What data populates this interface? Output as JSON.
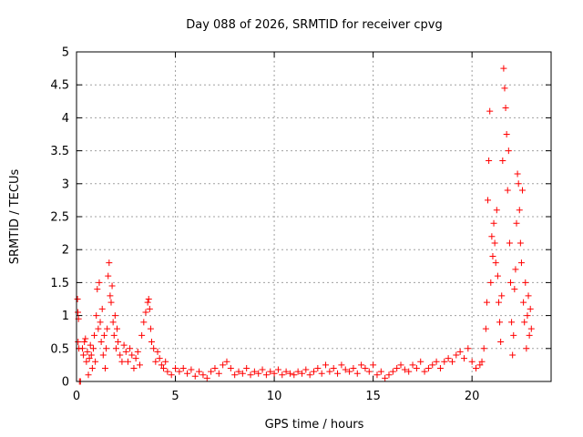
{
  "chart_data": {
    "type": "scatter",
    "title": "Day 088 of 2026, SRMTID for receiver cpvg",
    "xlabel": "GPS time / hours",
    "ylabel": "SRMTID / TECUs",
    "xlim": [
      0,
      24
    ],
    "ylim": [
      0,
      5
    ],
    "xticks": [
      0,
      5,
      10,
      15,
      20
    ],
    "xtick_labels": [
      "0",
      "5",
      "10",
      "15",
      "20"
    ],
    "yticks": [
      0,
      0.5,
      1,
      1.5,
      2,
      2.5,
      3,
      3.5,
      4,
      4.5,
      5
    ],
    "ytick_labels": [
      "0",
      "0.5",
      "1",
      "1.5",
      "2",
      "2.5",
      "3",
      "3.5",
      "4",
      "4.5",
      "5"
    ],
    "grid": true,
    "marker": "+",
    "series": [
      {
        "name": "SRMTID",
        "color": "#ff0000",
        "points": [
          [
            0.05,
            1.25
          ],
          [
            0.07,
            1.05
          ],
          [
            0.08,
            0.6
          ],
          [
            0.1,
            0.95
          ],
          [
            0.12,
            0.5
          ],
          [
            0.15,
            0.0
          ],
          [
            0.2,
            0.0
          ],
          [
            0.3,
            0.5
          ],
          [
            0.35,
            0.4
          ],
          [
            0.4,
            0.6
          ],
          [
            0.45,
            0.65
          ],
          [
            0.5,
            0.3
          ],
          [
            0.55,
            0.45
          ],
          [
            0.6,
            0.1
          ],
          [
            0.65,
            0.35
          ],
          [
            0.7,
            0.55
          ],
          [
            0.75,
            0.4
          ],
          [
            0.8,
            0.2
          ],
          [
            0.85,
            0.5
          ],
          [
            0.9,
            0.7
          ],
          [
            0.95,
            0.3
          ],
          [
            1.0,
            1.0
          ],
          [
            1.05,
            1.4
          ],
          [
            1.1,
            0.8
          ],
          [
            1.15,
            1.5
          ],
          [
            1.2,
            0.9
          ],
          [
            1.25,
            0.6
          ],
          [
            1.3,
            1.1
          ],
          [
            1.35,
            0.4
          ],
          [
            1.4,
            0.7
          ],
          [
            1.45,
            0.2
          ],
          [
            1.5,
            0.5
          ],
          [
            1.55,
            0.8
          ],
          [
            1.6,
            1.6
          ],
          [
            1.65,
            1.8
          ],
          [
            1.7,
            1.3
          ],
          [
            1.75,
            1.2
          ],
          [
            1.8,
            1.45
          ],
          [
            1.85,
            0.9
          ],
          [
            1.9,
            0.7
          ],
          [
            1.95,
            1.0
          ],
          [
            2.0,
            0.5
          ],
          [
            2.05,
            0.8
          ],
          [
            2.1,
            0.6
          ],
          [
            2.2,
            0.4
          ],
          [
            2.3,
            0.3
          ],
          [
            2.4,
            0.55
          ],
          [
            2.5,
            0.45
          ],
          [
            2.6,
            0.3
          ],
          [
            2.7,
            0.5
          ],
          [
            2.8,
            0.4
          ],
          [
            2.9,
            0.2
          ],
          [
            3.0,
            0.35
          ],
          [
            3.1,
            0.45
          ],
          [
            3.2,
            0.25
          ],
          [
            3.3,
            0.7
          ],
          [
            3.4,
            0.9
          ],
          [
            3.5,
            1.05
          ],
          [
            3.6,
            1.2
          ],
          [
            3.65,
            1.25
          ],
          [
            3.7,
            1.1
          ],
          [
            3.75,
            0.8
          ],
          [
            3.8,
            0.6
          ],
          [
            3.9,
            0.5
          ],
          [
            4.0,
            0.3
          ],
          [
            4.1,
            0.45
          ],
          [
            4.2,
            0.35
          ],
          [
            4.3,
            0.25
          ],
          [
            4.4,
            0.2
          ],
          [
            4.5,
            0.3
          ],
          [
            4.6,
            0.15
          ],
          [
            4.8,
            0.1
          ],
          [
            5.0,
            0.2
          ],
          [
            5.2,
            0.15
          ],
          [
            5.4,
            0.2
          ],
          [
            5.6,
            0.12
          ],
          [
            5.8,
            0.18
          ],
          [
            6.0,
            0.08
          ],
          [
            6.2,
            0.15
          ],
          [
            6.4,
            0.1
          ],
          [
            6.6,
            0.05
          ],
          [
            6.8,
            0.15
          ],
          [
            7.0,
            0.2
          ],
          [
            7.2,
            0.12
          ],
          [
            7.4,
            0.25
          ],
          [
            7.6,
            0.3
          ],
          [
            7.8,
            0.2
          ],
          [
            8.0,
            0.1
          ],
          [
            8.2,
            0.15
          ],
          [
            8.4,
            0.12
          ],
          [
            8.6,
            0.2
          ],
          [
            8.8,
            0.1
          ],
          [
            9.0,
            0.15
          ],
          [
            9.2,
            0.12
          ],
          [
            9.4,
            0.18
          ],
          [
            9.6,
            0.1
          ],
          [
            9.8,
            0.15
          ],
          [
            10.0,
            0.12
          ],
          [
            10.2,
            0.18
          ],
          [
            10.4,
            0.1
          ],
          [
            10.6,
            0.15
          ],
          [
            10.8,
            0.12
          ],
          [
            11.0,
            0.1
          ],
          [
            11.2,
            0.15
          ],
          [
            11.4,
            0.12
          ],
          [
            11.6,
            0.18
          ],
          [
            11.8,
            0.1
          ],
          [
            12.0,
            0.15
          ],
          [
            12.2,
            0.2
          ],
          [
            12.4,
            0.12
          ],
          [
            12.6,
            0.25
          ],
          [
            12.8,
            0.15
          ],
          [
            13.0,
            0.2
          ],
          [
            13.2,
            0.12
          ],
          [
            13.4,
            0.25
          ],
          [
            13.6,
            0.18
          ],
          [
            13.8,
            0.15
          ],
          [
            14.0,
            0.2
          ],
          [
            14.2,
            0.12
          ],
          [
            14.4,
            0.25
          ],
          [
            14.6,
            0.2
          ],
          [
            14.8,
            0.15
          ],
          [
            15.0,
            0.25
          ],
          [
            15.2,
            0.1
          ],
          [
            15.4,
            0.15
          ],
          [
            15.6,
            0.05
          ],
          [
            15.8,
            0.1
          ],
          [
            16.0,
            0.15
          ],
          [
            16.2,
            0.2
          ],
          [
            16.4,
            0.25
          ],
          [
            16.6,
            0.18
          ],
          [
            16.8,
            0.15
          ],
          [
            17.0,
            0.25
          ],
          [
            17.2,
            0.2
          ],
          [
            17.4,
            0.3
          ],
          [
            17.6,
            0.15
          ],
          [
            17.8,
            0.2
          ],
          [
            18.0,
            0.25
          ],
          [
            18.2,
            0.3
          ],
          [
            18.4,
            0.2
          ],
          [
            18.6,
            0.3
          ],
          [
            18.8,
            0.35
          ],
          [
            19.0,
            0.3
          ],
          [
            19.2,
            0.4
          ],
          [
            19.4,
            0.45
          ],
          [
            19.6,
            0.35
          ],
          [
            19.8,
            0.5
          ],
          [
            20.0,
            0.3
          ],
          [
            20.2,
            0.2
          ],
          [
            20.4,
            0.25
          ],
          [
            20.5,
            0.3
          ],
          [
            20.6,
            0.5
          ],
          [
            20.7,
            0.8
          ],
          [
            20.75,
            1.2
          ],
          [
            20.8,
            2.75
          ],
          [
            20.85,
            3.35
          ],
          [
            20.9,
            4.1
          ],
          [
            20.95,
            1.5
          ],
          [
            21.0,
            2.2
          ],
          [
            21.05,
            1.9
          ],
          [
            21.1,
            2.4
          ],
          [
            21.15,
            2.1
          ],
          [
            21.2,
            1.8
          ],
          [
            21.25,
            2.6
          ],
          [
            21.3,
            1.6
          ],
          [
            21.35,
            1.2
          ],
          [
            21.4,
            0.9
          ],
          [
            21.45,
            0.6
          ],
          [
            21.5,
            1.3
          ],
          [
            21.55,
            3.35
          ],
          [
            21.6,
            4.75
          ],
          [
            21.65,
            4.45
          ],
          [
            21.7,
            4.15
          ],
          [
            21.75,
            3.75
          ],
          [
            21.8,
            2.9
          ],
          [
            21.85,
            3.5
          ],
          [
            21.9,
            2.1
          ],
          [
            21.95,
            1.5
          ],
          [
            22.0,
            0.9
          ],
          [
            22.05,
            0.4
          ],
          [
            22.1,
            0.7
          ],
          [
            22.15,
            1.4
          ],
          [
            22.2,
            1.7
          ],
          [
            22.25,
            2.4
          ],
          [
            22.3,
            3.15
          ],
          [
            22.35,
            3.0
          ],
          [
            22.4,
            2.6
          ],
          [
            22.45,
            2.1
          ],
          [
            22.5,
            1.8
          ],
          [
            22.55,
            2.9
          ],
          [
            22.6,
            1.2
          ],
          [
            22.65,
            0.9
          ],
          [
            22.7,
            1.5
          ],
          [
            22.75,
            0.5
          ],
          [
            22.8,
            1.0
          ],
          [
            22.85,
            1.3
          ],
          [
            22.9,
            0.7
          ],
          [
            22.95,
            1.1
          ],
          [
            23.0,
            0.8
          ]
        ]
      }
    ]
  }
}
